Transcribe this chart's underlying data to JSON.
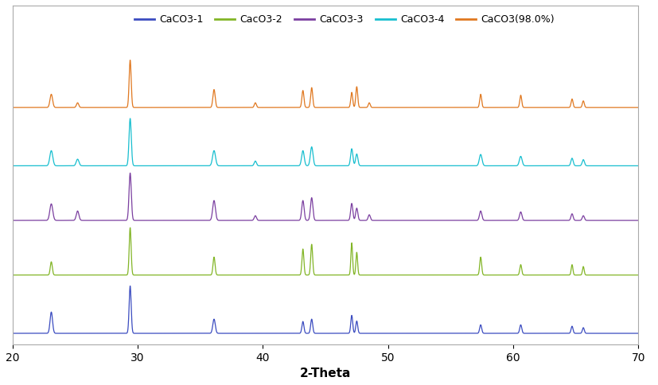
{
  "xlabel": "2-Theta",
  "xlim": [
    20,
    70
  ],
  "colors": {
    "CaCO3-1": "#3B4CC0",
    "CaCO3-2": "#82B526",
    "CaCO3-3": "#7B3FA0",
    "CaCO3-4": "#17BECF",
    "CaCO3(98.0%)": "#E07820"
  },
  "legend_labels": [
    "CaCO3-1",
    "CacO3-2",
    "CaCO3-3",
    "CaCO3-4",
    "CaCO3(98.0%)"
  ],
  "offsets": [
    0.0,
    0.16,
    0.31,
    0.46,
    0.62
  ],
  "peak_scale": 0.13,
  "series": {
    "CaCO3-1": {
      "peak_pos": [
        23.1,
        29.4,
        36.1,
        43.2,
        43.9,
        47.1,
        47.5,
        57.4,
        60.6,
        64.7,
        65.6
      ],
      "peak_int": [
        0.45,
        1.0,
        0.3,
        0.25,
        0.3,
        0.38,
        0.26,
        0.18,
        0.18,
        0.15,
        0.12
      ],
      "width": [
        0.22,
        0.18,
        0.22,
        0.18,
        0.18,
        0.17,
        0.17,
        0.18,
        0.18,
        0.17,
        0.17
      ]
    },
    "CaCO3-2": {
      "peak_pos": [
        23.1,
        29.4,
        36.1,
        43.2,
        43.9,
        47.1,
        47.5,
        57.4,
        60.6,
        64.7,
        65.6
      ],
      "peak_int": [
        0.28,
        1.0,
        0.38,
        0.55,
        0.65,
        0.68,
        0.48,
        0.38,
        0.22,
        0.22,
        0.18
      ],
      "width": [
        0.18,
        0.17,
        0.18,
        0.17,
        0.17,
        0.15,
        0.15,
        0.17,
        0.17,
        0.15,
        0.15
      ]
    },
    "CaCO3-3": {
      "peak_pos": [
        23.1,
        25.2,
        29.4,
        36.1,
        39.4,
        43.2,
        43.9,
        47.1,
        47.5,
        48.5,
        57.4,
        60.6,
        64.7,
        65.6
      ],
      "peak_int": [
        0.35,
        0.2,
        1.0,
        0.42,
        0.1,
        0.42,
        0.48,
        0.36,
        0.26,
        0.12,
        0.2,
        0.18,
        0.14,
        0.1
      ],
      "width": [
        0.26,
        0.23,
        0.2,
        0.24,
        0.2,
        0.21,
        0.21,
        0.19,
        0.19,
        0.19,
        0.21,
        0.21,
        0.19,
        0.19
      ]
    },
    "CaCO3-4": {
      "peak_pos": [
        23.1,
        25.2,
        29.4,
        36.1,
        39.4,
        43.2,
        43.9,
        47.1,
        47.5,
        57.4,
        60.6,
        64.7,
        65.6
      ],
      "peak_int": [
        0.32,
        0.14,
        1.0,
        0.32,
        0.1,
        0.32,
        0.4,
        0.36,
        0.25,
        0.24,
        0.2,
        0.16,
        0.13
      ],
      "width": [
        0.26,
        0.24,
        0.2,
        0.26,
        0.2,
        0.23,
        0.23,
        0.2,
        0.2,
        0.24,
        0.24,
        0.2,
        0.2
      ]
    },
    "CaCO3(98.0%)": {
      "peak_pos": [
        23.1,
        25.2,
        29.4,
        36.1,
        39.4,
        43.2,
        43.9,
        47.1,
        47.5,
        48.5,
        57.4,
        60.6,
        64.7,
        65.6
      ],
      "peak_int": [
        0.28,
        0.1,
        1.0,
        0.38,
        0.1,
        0.36,
        0.42,
        0.32,
        0.44,
        0.1,
        0.28,
        0.26,
        0.18,
        0.14
      ],
      "width": [
        0.23,
        0.2,
        0.18,
        0.2,
        0.18,
        0.18,
        0.18,
        0.17,
        0.17,
        0.17,
        0.17,
        0.17,
        0.17,
        0.17
      ]
    }
  },
  "background_color": "#FFFFFF",
  "figure_size": [
    8.28,
    4.84
  ],
  "dpi": 100
}
